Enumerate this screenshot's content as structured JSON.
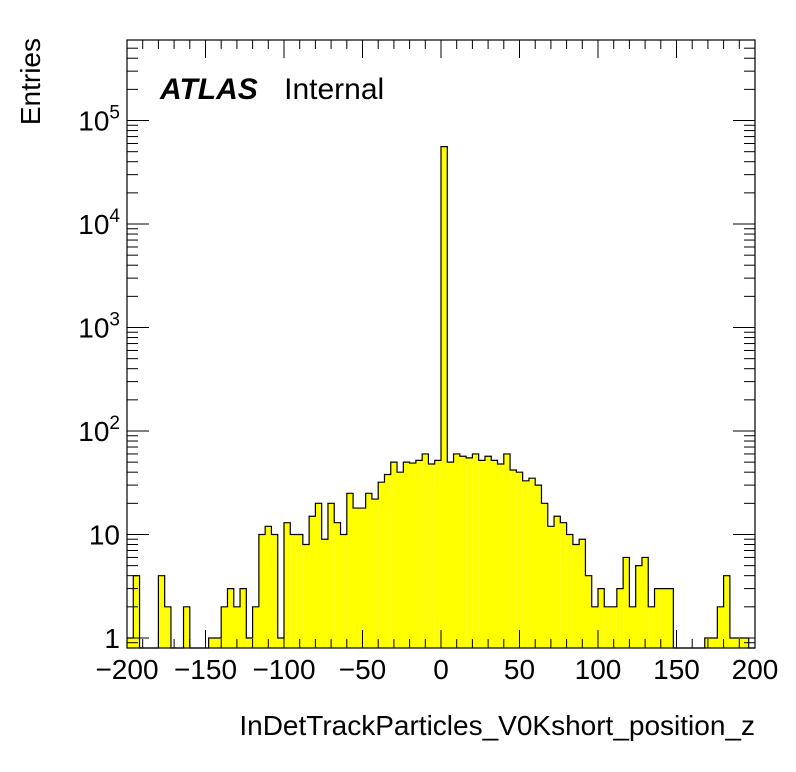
{
  "chart_data": {
    "type": "bar",
    "title": "",
    "annotation": {
      "bold": "ATLAS",
      "normal": "Internal"
    },
    "xlabel": "InDetTrackParticles_V0Kshort_position_z",
    "ylabel": "Entries",
    "xlim": [
      -200,
      200
    ],
    "ylim": [
      0.8,
      600000
    ],
    "yscale": "log",
    "bin_width": 4,
    "fill_color": "#ffff00",
    "line_color": "#000000",
    "xticks": [
      -200,
      -150,
      -100,
      -50,
      0,
      50,
      100,
      150,
      200
    ],
    "xtick_labels": [
      "−200",
      "−150",
      "−100",
      "−50",
      "0",
      "50",
      "100",
      "150",
      "200"
    ],
    "yticks": [
      {
        "value": 1,
        "base": "1",
        "exp": ""
      },
      {
        "value": 10,
        "base": "10",
        "exp": ""
      },
      {
        "value": 100,
        "base": "10",
        "exp": "2"
      },
      {
        "value": 1000,
        "base": "10",
        "exp": "3"
      },
      {
        "value": 10000,
        "base": "10",
        "exp": "4"
      },
      {
        "value": 100000,
        "base": "10",
        "exp": "5"
      }
    ],
    "bins_low_edge": [
      -200,
      -196,
      -192,
      -188,
      -184,
      -180,
      -176,
      -172,
      -168,
      -164,
      -160,
      -156,
      -152,
      -148,
      -144,
      -140,
      -136,
      -132,
      -128,
      -124,
      -120,
      -116,
      -112,
      -108,
      -104,
      -100,
      -96,
      -92,
      -88,
      -84,
      -80,
      -76,
      -72,
      -68,
      -64,
      -60,
      -56,
      -52,
      -48,
      -44,
      -40,
      -36,
      -32,
      -28,
      -24,
      -20,
      -16,
      -12,
      -8,
      -4,
      0,
      4,
      8,
      12,
      16,
      20,
      24,
      28,
      32,
      36,
      40,
      44,
      48,
      52,
      56,
      60,
      64,
      68,
      72,
      76,
      80,
      84,
      88,
      92,
      96,
      100,
      104,
      108,
      112,
      116,
      120,
      124,
      128,
      132,
      136,
      140,
      144,
      148,
      152,
      156,
      160,
      164,
      168,
      172,
      176,
      180,
      184,
      188,
      192,
      196
    ],
    "counts": [
      1,
      4,
      0,
      0,
      0,
      4,
      2,
      0,
      0,
      2,
      0,
      0,
      0,
      1,
      1,
      2,
      3,
      2,
      3,
      1,
      2,
      10,
      12,
      10,
      1,
      13,
      10,
      10,
      8,
      15,
      20,
      9,
      20,
      13,
      10,
      25,
      18,
      18,
      25,
      22,
      32,
      38,
      50,
      40,
      50,
      49,
      52,
      60,
      48,
      52,
      56000,
      50,
      60,
      57,
      55,
      60,
      52,
      57,
      52,
      48,
      60,
      42,
      40,
      33,
      35,
      30,
      20,
      12,
      15,
      13,
      10,
      8,
      9,
      4,
      2,
      3,
      2,
      2,
      3,
      6,
      2,
      5,
      6,
      2,
      3,
      3,
      3,
      0,
      0,
      0,
      0,
      0,
      1,
      1,
      2,
      4,
      1,
      1,
      1,
      0
    ]
  }
}
